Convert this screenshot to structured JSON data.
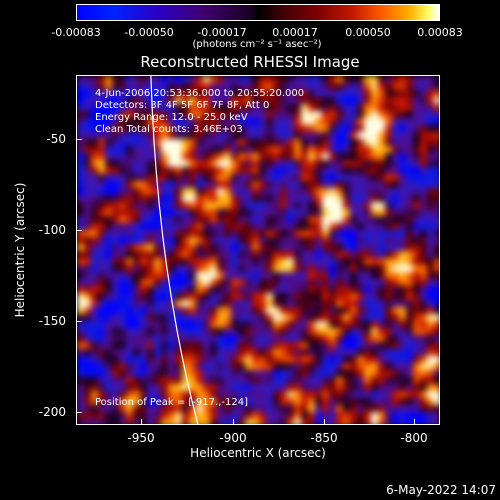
{
  "colorbar": {
    "ticks": [
      "-0.00083",
      "-0.00050",
      "-0.00017",
      "0.00017",
      "0.00050",
      "0.00083"
    ],
    "units": "(photons cm⁻² s⁻¹ asec⁻²)"
  },
  "plot": {
    "title": "Reconstructed RHESSI Image",
    "time_range": "4-Jun-2006 20:53:36.000 to 20:55:20.000",
    "detectors": "Detectors: 3F 4F 5F 6F 7F 8F, Att 0",
    "energy": "Energy Range: 12.0 - 25.0 keV",
    "algorithm": "Clean     Total counts: 3.46E+03",
    "peak": "Position of Peak = [-917.,-124]",
    "xlabel": "Heliocentric X (arcsec)",
    "ylabel": "Heliocentric Y (arcsec)",
    "xticks": [
      "-950",
      "-900",
      "-850",
      "-800"
    ],
    "yticks": [
      "-50",
      "-100",
      "-150",
      "-200"
    ]
  },
  "footer": {
    "date": "6-May-2022 14:07"
  },
  "chart_data": {
    "type": "heatmap",
    "title": "Reconstructed RHESSI Image",
    "xlabel": "Heliocentric X (arcsec)",
    "ylabel": "Heliocentric Y (arcsec)",
    "xlim": [
      -984,
      -792
    ],
    "ylim": [
      -207,
      -15
    ],
    "colorscale_range": [
      -0.00083,
      0.00083
    ],
    "peak_position": [
      -917,
      -124
    ],
    "hot_spots": [
      {
        "x": -915,
        "y": -122,
        "level": 1.0
      },
      {
        "x": -826,
        "y": -45,
        "level": 0.9
      },
      {
        "x": -862,
        "y": -48,
        "level": 0.75
      },
      {
        "x": -850,
        "y": -85,
        "level": 0.8
      },
      {
        "x": -932,
        "y": -60,
        "level": 0.7
      },
      {
        "x": -805,
        "y": -185,
        "level": 0.8
      },
      {
        "x": -883,
        "y": -108,
        "level": 0.7
      },
      {
        "x": -963,
        "y": -85,
        "level": 0.6
      },
      {
        "x": -848,
        "y": -140,
        "level": 0.65
      },
      {
        "x": -900,
        "y": -70,
        "level": 0.6
      },
      {
        "x": -872,
        "y": -160,
        "level": 0.5
      },
      {
        "x": -812,
        "y": -125,
        "level": 0.55
      }
    ],
    "limb": {
      "x": [
        -945,
        -920
      ],
      "y": [
        -15,
        -207
      ]
    }
  }
}
